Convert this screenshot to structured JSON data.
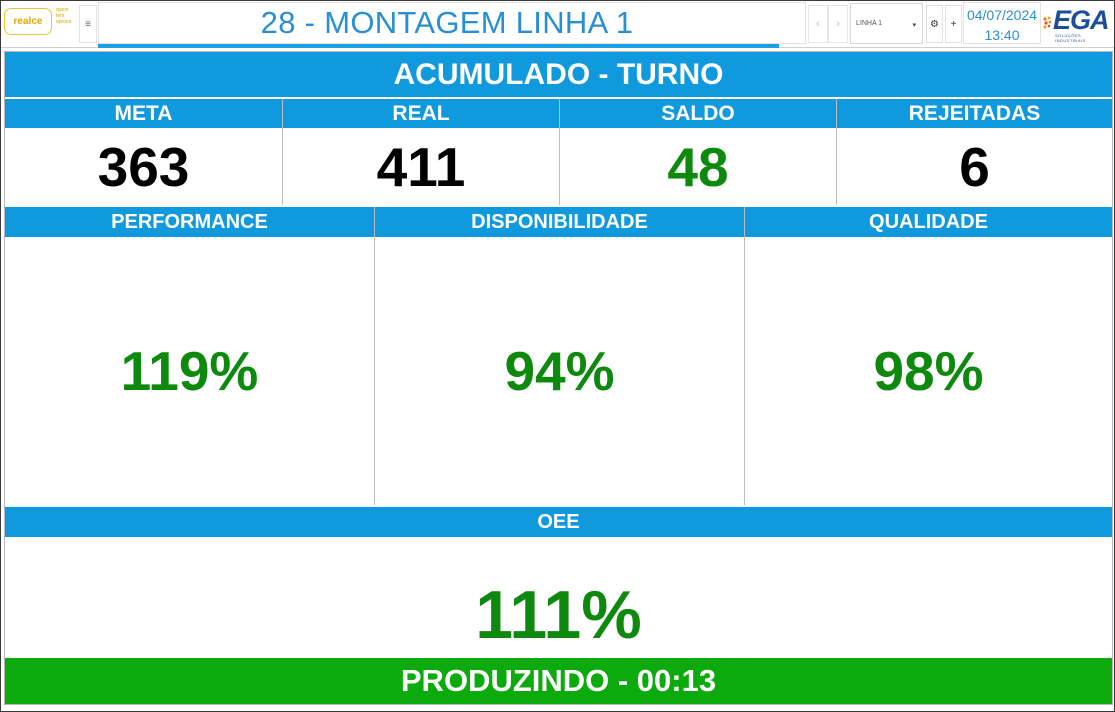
{
  "header": {
    "logo_text": "realce",
    "logo_tagline": "quem tem aprova",
    "menu_icon": "hamburger-icon",
    "title": "28 - MONTAGEM LINHA 1",
    "line_select": "LINHA 1",
    "date": "04/07/2024",
    "time": "13:40",
    "brand": "EGA",
    "brand_sub": "SOLUÇÕES INDUSTRIAIS",
    "icons": [
      "chevron-left-icon",
      "chevron-right-icon",
      "caret-down-icon",
      "gear-icon",
      "plus-icon"
    ]
  },
  "dashboard": {
    "section_title": "ACUMULADO - TURNO",
    "counters": [
      {
        "label": "META",
        "value": "363",
        "color": "#000000"
      },
      {
        "label": "REAL",
        "value": "411",
        "color": "#000000"
      },
      {
        "label": "SALDO",
        "value": "48",
        "color": "#0d8a0d"
      },
      {
        "label": "REJEITADAS",
        "value": "6",
        "color": "#000000"
      }
    ],
    "indicators": [
      {
        "label": "PERFORMANCE",
        "value": "119%"
      },
      {
        "label": "DISPONIBILIDADE",
        "value": "94%"
      },
      {
        "label": "QUALIDADE",
        "value": "98%"
      }
    ],
    "oee": {
      "label": "OEE",
      "value": "111%"
    },
    "status": "PRODUZINDO - 00:13"
  },
  "colors": {
    "header_blue": "#1199dd",
    "value_green": "#0d8a0d",
    "status_green": "#0caa0c",
    "title_blue": "#2a8fd1"
  }
}
